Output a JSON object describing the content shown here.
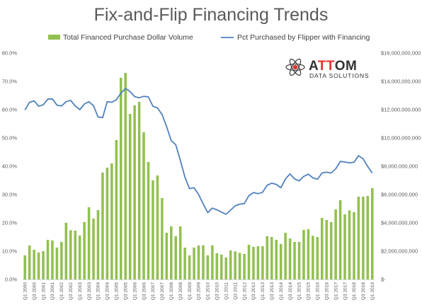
{
  "chart_data": {
    "type": "bar",
    "title": "Fix-and-Flip Financing Trends",
    "categories": [
      "Q1 2000",
      "Q2 2000",
      "Q3 2000",
      "Q4 2000",
      "Q1 2001",
      "Q2 2001",
      "Q3 2001",
      "Q4 2001",
      "Q1 2002",
      "Q2 2002",
      "Q3 2002",
      "Q4 2002",
      "Q1 2003",
      "Q2 2003",
      "Q3 2003",
      "Q4 2003",
      "Q1 2004",
      "Q2 2004",
      "Q3 2004",
      "Q4 2004",
      "Q1 2005",
      "Q2 2005",
      "Q3 2005",
      "Q4 2005",
      "Q1 2006",
      "Q2 2006",
      "Q3 2006",
      "Q4 2006",
      "Q1 2007",
      "Q2 2007",
      "Q3 2007",
      "Q4 2007",
      "Q1 2008",
      "Q2 2008",
      "Q3 2008",
      "Q4 2008",
      "Q1 2009",
      "Q2 2009",
      "Q3 2009",
      "Q4 2009",
      "Q1 2010",
      "Q2 2010",
      "Q3 2010",
      "Q4 2010",
      "Q1 2011",
      "Q2 2011",
      "Q3 2011",
      "Q4 2011",
      "Q1 2012",
      "Q2 2012",
      "Q3 2012",
      "Q4 2012",
      "Q1 2013",
      "Q2 2013",
      "Q3 2013",
      "Q4 2013",
      "Q1 2014",
      "Q2 2014",
      "Q3 2014",
      "Q4 2014",
      "Q1 2015",
      "Q2 2015",
      "Q3 2015",
      "Q4 2015",
      "Q1 2016",
      "Q2 2016",
      "Q3 2016",
      "Q4 2016",
      "Q1 2017",
      "Q2 2017",
      "Q3 2017",
      "Q4 2017",
      "Q1 2018",
      "Q2 2018",
      "Q3 2018",
      "Q4 2018",
      "Q1 2019"
    ],
    "x_tick_labels": [
      "Q1 2000",
      "Q3 2000",
      "Q1 2001",
      "Q3 2001",
      "Q1 2002",
      "Q3 2002",
      "Q1 2003",
      "Q3 2003",
      "Q1 2004",
      "Q3 2004",
      "Q1 2005",
      "Q3 2005",
      "Q1 2006",
      "Q3 2006",
      "Q1 2007",
      "Q3 2007",
      "Q1 2008",
      "Q3 2008",
      "Q1 2009",
      "Q3 2009",
      "Q1 2010",
      "Q3 2010",
      "Q1 2011",
      "Q3 2011",
      "Q1 2012",
      "Q3 2012",
      "Q1 2013",
      "Q3 2013",
      "Q1 2014",
      "Q3 2014",
      "Q1 2015",
      "Q3 2015",
      "Q1 2016",
      "Q3 2016",
      "Q1 2017",
      "Q3 2017",
      "Q1 2018",
      "Q3 2018",
      "Q1 2019"
    ],
    "series": [
      {
        "name": "Total Financed Purchase Dollar Volume",
        "type": "bar",
        "axis": "right",
        "color": "#92c050",
        "values": [
          1700000000,
          2400000000,
          2100000000,
          1900000000,
          2000000000,
          2800000000,
          2750000000,
          2250000000,
          2650000000,
          4000000000,
          3480000000,
          3450000000,
          3100000000,
          4050000000,
          5100000000,
          4300000000,
          4900000000,
          7550000000,
          7900000000,
          8200000000,
          9850000000,
          14250000000,
          14600000000,
          11700000000,
          12300000000,
          12550000000,
          10400000000,
          8300000000,
          7000000000,
          7350000000,
          5750000000,
          3300000000,
          3750000000,
          3050000000,
          3750000000,
          2250000000,
          1700000000,
          2250000000,
          2400000000,
          2400000000,
          1700000000,
          2400000000,
          1850000000,
          1750000000,
          1550000000,
          2050000000,
          1980000000,
          1880000000,
          1800000000,
          2450000000,
          2300000000,
          2350000000,
          2350000000,
          3050000000,
          3000000000,
          2800000000,
          2500000000,
          3300000000,
          2900000000,
          2650000000,
          2650000000,
          3500000000,
          3550000000,
          3080000000,
          3000000000,
          4350000000,
          4200000000,
          4050000000,
          4950000000,
          5600000000,
          4600000000,
          4880000000,
          4750000000,
          5850000000,
          5850000000,
          5900000000,
          6450000000
        ]
      },
      {
        "name": "Pct Purchased by Flipper with Financing",
        "type": "line",
        "axis": "left",
        "color": "#4f81bd",
        "values": [
          0.599,
          0.626,
          0.631,
          0.612,
          0.617,
          0.637,
          0.638,
          0.616,
          0.613,
          0.628,
          0.633,
          0.613,
          0.6,
          0.62,
          0.628,
          0.614,
          0.574,
          0.572,
          0.628,
          0.626,
          0.635,
          0.658,
          0.675,
          0.664,
          0.646,
          0.642,
          0.647,
          0.645,
          0.612,
          0.606,
          0.583,
          0.54,
          0.491,
          0.476,
          0.421,
          0.362,
          0.321,
          0.324,
          0.3,
          0.267,
          0.236,
          0.252,
          0.246,
          0.238,
          0.23,
          0.245,
          0.26,
          0.266,
          0.268,
          0.296,
          0.307,
          0.303,
          0.308,
          0.333,
          0.34,
          0.336,
          0.324,
          0.355,
          0.373,
          0.355,
          0.348,
          0.364,
          0.372,
          0.359,
          0.354,
          0.376,
          0.379,
          0.376,
          0.391,
          0.417,
          0.415,
          0.412,
          0.414,
          0.437,
          0.426,
          0.399,
          0.376
        ]
      }
    ],
    "y_left": {
      "min": 0,
      "max": 0.8,
      "ticks": [
        "0.0%",
        "10.0%",
        "20.0%",
        "30.0%",
        "40.0%",
        "50.0%",
        "60.0%",
        "70.0%",
        "80.0%"
      ]
    },
    "y_right": {
      "min": 0,
      "max": 16000000000,
      "ticks": [
        "$-",
        "$2,000,000,000",
        "$4,000,000,000",
        "$6,000,000,000",
        "$8,000,000,000",
        "$10,000,000,000",
        "$12,000,000,000",
        "$14,000,000,000",
        "$16,000,000,000"
      ]
    },
    "legend": "top",
    "grid": false
  },
  "logo": {
    "name_left": "A",
    "name_mid": "TT",
    "name_right": "OM",
    "subtitle": "DATA SOLUTIONS",
    "accent_color": "#e3322d",
    "icon": "atom-icon"
  }
}
